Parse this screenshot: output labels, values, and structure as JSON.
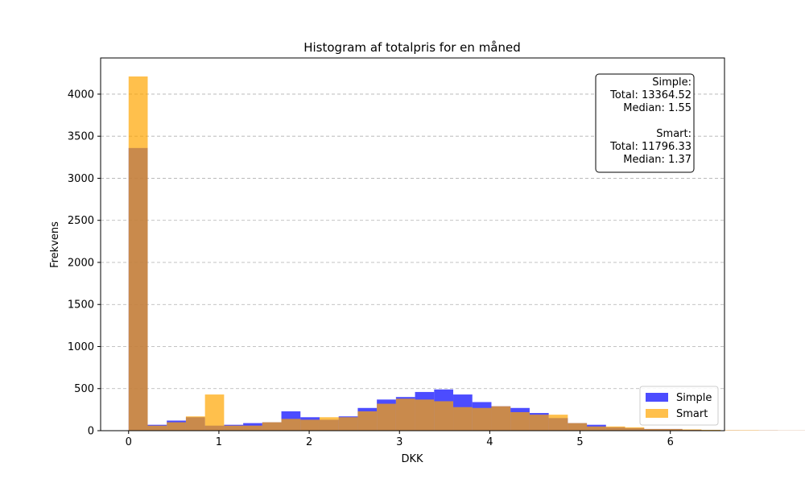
{
  "chart_data": {
    "type": "bar",
    "title": "Histogram af totalpris for en måned",
    "xlabel": "DKK",
    "ylabel": "Frekvens",
    "xlim": [
      -0.31,
      6.6
    ],
    "ylim": [
      0,
      4430
    ],
    "xticks": [
      0,
      1,
      2,
      3,
      4,
      5,
      6
    ],
    "yticks": [
      0,
      500,
      1000,
      1500,
      2000,
      2500,
      3000,
      3500,
      4000
    ],
    "grid": "horizontal dashed",
    "legend_position": "lower right",
    "series": [
      {
        "name": "Simple",
        "color": "#0000ff",
        "opacity": 0.7,
        "bin_start": 0,
        "bin_width": 0.2115,
        "counts": [
          3360,
          70,
          120,
          160,
          60,
          70,
          90,
          100,
          230,
          160,
          130,
          170,
          270,
          370,
          400,
          460,
          490,
          430,
          340,
          290,
          270,
          210,
          150,
          90,
          70,
          40,
          30,
          20,
          20,
          10,
          5,
          3,
          2,
          2,
          1,
          1,
          1,
          1,
          1,
          1
        ]
      },
      {
        "name": "Smart",
        "color": "#ffa500",
        "opacity": 0.7,
        "bin_start": 0,
        "bin_width": 0.2115,
        "counts": [
          4210,
          60,
          100,
          170,
          430,
          60,
          60,
          100,
          140,
          130,
          160,
          160,
          230,
          320,
          380,
          370,
          350,
          280,
          270,
          290,
          220,
          190,
          190,
          90,
          50,
          50,
          40,
          20,
          20,
          15,
          10,
          5,
          5,
          3,
          2,
          2,
          2,
          1,
          1,
          1
        ]
      }
    ],
    "annotation": {
      "lines": [
        "Simple:",
        "Total: 13364.52",
        "Median: 1.55",
        "",
        "Smart:",
        "Total: 11796.33",
        "Median: 1.37"
      ],
      "position": "upper right"
    }
  }
}
